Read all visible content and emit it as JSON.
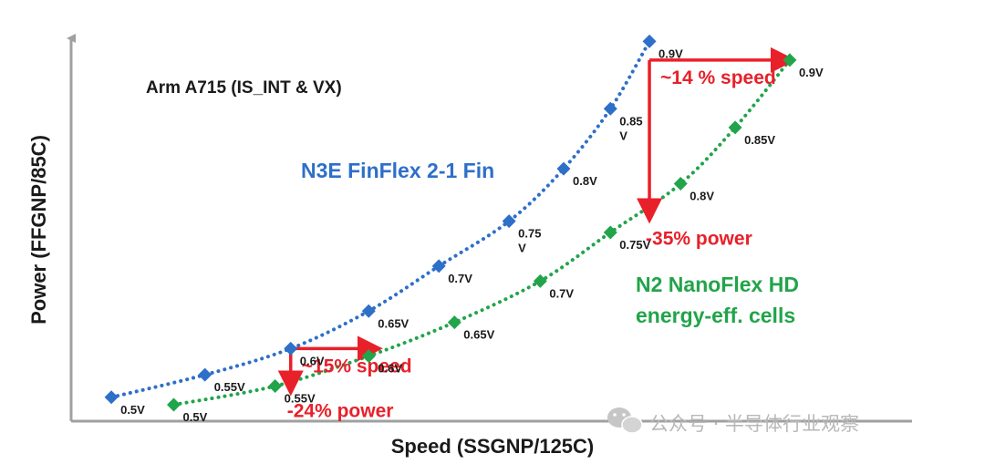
{
  "chart_data": {
    "type": "scatter",
    "title": "Arm A715  (IS_INT & VX)",
    "xlabel": "Speed (SSGNP/125C)",
    "ylabel": "Power (FFGNP/85C)",
    "colors": {
      "n3e": "#2e6fc8",
      "n2": "#22a44a",
      "annotation": "#e8202a",
      "axis": "#a0a0a0"
    },
    "series": [
      {
        "name": "N3E FinFlex 2-1 Fin",
        "marker": "diamond",
        "line": "dotted",
        "points": [
          {
            "x": 0.02,
            "y": 0.02,
            "label": "0.5V"
          },
          {
            "x": 0.14,
            "y": 0.08,
            "label": "0.55V"
          },
          {
            "x": 0.25,
            "y": 0.15,
            "label": "0.6V"
          },
          {
            "x": 0.35,
            "y": 0.25,
            "label": "0.65V"
          },
          {
            "x": 0.44,
            "y": 0.37,
            "label": "0.7V"
          },
          {
            "x": 0.53,
            "y": 0.49,
            "label": "0.75 V"
          },
          {
            "x": 0.6,
            "y": 0.63,
            "label": "0.8V"
          },
          {
            "x": 0.66,
            "y": 0.79,
            "label": "0.85 V"
          },
          {
            "x": 0.71,
            "y": 0.97,
            "label": "0.9V"
          }
        ]
      },
      {
        "name": "N2 NanoFlex HD energy-eff. cells",
        "marker": "diamond",
        "line": "dotted",
        "points": [
          {
            "x": 0.1,
            "y": 0.0,
            "label": "0.5V"
          },
          {
            "x": 0.23,
            "y": 0.05,
            "label": "0.55V"
          },
          {
            "x": 0.35,
            "y": 0.13,
            "label": "0.6V"
          },
          {
            "x": 0.46,
            "y": 0.22,
            "label": "0.65V"
          },
          {
            "x": 0.57,
            "y": 0.33,
            "label": "0.7V"
          },
          {
            "x": 0.66,
            "y": 0.46,
            "label": "0.75V"
          },
          {
            "x": 0.75,
            "y": 0.59,
            "label": "0.8V"
          },
          {
            "x": 0.82,
            "y": 0.74,
            "label": "0.85V"
          },
          {
            "x": 0.89,
            "y": 0.92,
            "label": "0.9V"
          }
        ]
      }
    ],
    "series_labels": {
      "n3e": [
        "N3E FinFlex 2-1 Fin"
      ],
      "n2": [
        "N2 NanoFlex HD",
        "energy-eff. cells"
      ]
    },
    "annotations": [
      {
        "text": "~14 % speed",
        "type": "speed",
        "from_x": 0.71,
        "to_x": 0.89,
        "y": 0.92
      },
      {
        "text": "-35% power",
        "type": "power",
        "x": 0.71,
        "from_y": 0.92,
        "to_y": 0.5
      },
      {
        "text": "~15% speed",
        "type": "speed",
        "from_x": 0.25,
        "to_x": 0.36,
        "y": 0.15
      },
      {
        "text": "-24% power",
        "type": "power",
        "x": 0.25,
        "from_y": 0.15,
        "to_y": 0.04
      }
    ],
    "xlim": [
      0,
      1
    ],
    "ylim": [
      0,
      1
    ],
    "ticks": false,
    "grid": false
  },
  "watermark": "公众号 · 半导体行业观察"
}
